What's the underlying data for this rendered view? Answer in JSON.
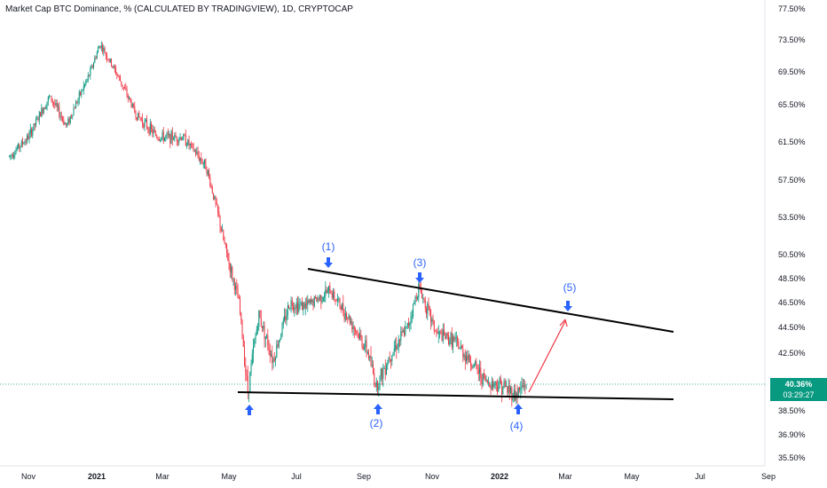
{
  "chart_data": {
    "type": "candlestick",
    "title": "Market Cap BTC Dominance, % (CALCULATED BY TRADINGVIEW), 1D, CRYPTOCAP",
    "y_ticks": [
      "77.50%",
      "73.50%",
      "69.50%",
      "65.50%",
      "61.50%",
      "57.50%",
      "53.50%",
      "50.50%",
      "48.50%",
      "46.50%",
      "44.50%",
      "42.50%",
      "38.50%",
      "36.90%",
      "35.50%"
    ],
    "x_ticks": [
      "Nov",
      "2021",
      "Mar",
      "May",
      "Jul",
      "Sep",
      "Nov",
      "2022",
      "Mar",
      "May",
      "Jul",
      "Sep"
    ],
    "current_value": "40.36%",
    "countdown": "03:29:27",
    "annotations": [
      "(1)",
      "(2)",
      "(3)",
      "(4)",
      "(5)"
    ],
    "price_path": [
      {
        "date": "2020-10-15",
        "value": 60.0
      },
      {
        "date": "2020-11-01",
        "value": 62.0
      },
      {
        "date": "2020-11-20",
        "value": 66.5
      },
      {
        "date": "2020-12-05",
        "value": 63.2
      },
      {
        "date": "2020-12-25",
        "value": 69.0
      },
      {
        "date": "2021-01-04",
        "value": 73.0
      },
      {
        "date": "2021-01-20",
        "value": 69.0
      },
      {
        "date": "2021-02-05",
        "value": 64.5
      },
      {
        "date": "2021-02-25",
        "value": 62.0
      },
      {
        "date": "2021-03-20",
        "value": 62.0
      },
      {
        "date": "2021-04-10",
        "value": 59.0
      },
      {
        "date": "2021-04-25",
        "value": 52.0
      },
      {
        "date": "2021-05-10",
        "value": 46.5
      },
      {
        "date": "2021-05-18",
        "value": 39.8
      },
      {
        "date": "2021-05-28",
        "value": 45.5
      },
      {
        "date": "2021-06-10",
        "value": 42.0
      },
      {
        "date": "2021-06-25",
        "value": 46.5
      },
      {
        "date": "2021-07-10",
        "value": 46.2
      },
      {
        "date": "2021-08-01",
        "value": 47.5
      },
      {
        "date": "2021-08-20",
        "value": 45.0
      },
      {
        "date": "2021-09-05",
        "value": 42.5
      },
      {
        "date": "2021-09-12",
        "value": 40.2
      },
      {
        "date": "2021-09-25",
        "value": 42.5
      },
      {
        "date": "2021-10-10",
        "value": 44.5
      },
      {
        "date": "2021-10-20",
        "value": 47.8
      },
      {
        "date": "2021-11-05",
        "value": 44.0
      },
      {
        "date": "2021-11-20",
        "value": 43.5
      },
      {
        "date": "2021-12-05",
        "value": 42.0
      },
      {
        "date": "2021-12-20",
        "value": 40.5
      },
      {
        "date": "2022-01-03",
        "value": 40.3
      },
      {
        "date": "2022-01-15",
        "value": 39.6
      },
      {
        "date": "2022-01-25",
        "value": 40.4
      }
    ]
  }
}
